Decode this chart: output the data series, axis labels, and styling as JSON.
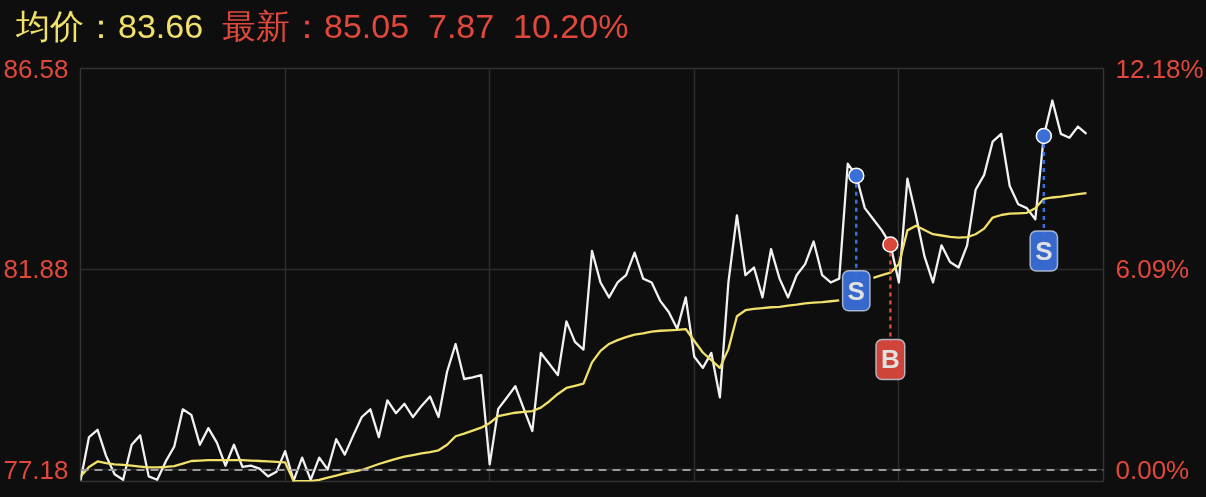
{
  "chart_data": {
    "type": "line",
    "title": "均价：83.66",
    "subtitle": "最新：85.05  7.87  10.20%",
    "categories": [
      null,
      null,
      null,
      null,
      null,
      null,
      null,
      null,
      null,
      null,
      null,
      null,
      null,
      null,
      null,
      null,
      null,
      null,
      null,
      null,
      null,
      null,
      null,
      null,
      null,
      null,
      null,
      null,
      null,
      null,
      null,
      null,
      null,
      null,
      null,
      null,
      null,
      null,
      null,
      null,
      null,
      null,
      null,
      null,
      null,
      null,
      null,
      null,
      null,
      null,
      null,
      null,
      null,
      null,
      null,
      null,
      null,
      null,
      null,
      null,
      null,
      null,
      null,
      null,
      null,
      null,
      null,
      null,
      null,
      null,
      null,
      null,
      null,
      null,
      null,
      null,
      null,
      null,
      null,
      null,
      null,
      null,
      null,
      null,
      null,
      null,
      null,
      null,
      null,
      null,
      null,
      null,
      null,
      null,
      null,
      null,
      null,
      null,
      null,
      null,
      null,
      null,
      null,
      null,
      null,
      null,
      null,
      null,
      null,
      null,
      null,
      null,
      null,
      null,
      null,
      null,
      null,
      null,
      null,
      null,
      null
    ],
    "ylim": [
      76.91,
      86.58
    ],
    "yticks": [
      86.58,
      81.88,
      77.18
    ],
    "y2lim": [
      -0.35,
      12.18
    ],
    "y2ticks": [
      {
        "value": 12.18,
        "label": "12.18%"
      },
      {
        "value": 6.09,
        "label": "6.09%"
      },
      {
        "value": 0,
        "label": "0.00%"
      }
    ],
    "grid": true,
    "ref_lines": [
      {
        "axis": "y",
        "value": 77.18,
        "color": "#9a9a9a",
        "line_style": "dashed"
      }
    ],
    "series": [
      {
        "color": "#f2f2f2",
        "values": [
          76.93,
          77.95,
          78.12,
          77.51,
          77.08,
          76.95,
          77.77,
          77.99,
          77.03,
          76.95,
          77.38,
          77.73,
          78.6,
          78.47,
          77.77,
          78.16,
          77.82,
          77.28,
          77.77,
          77.25,
          77.28,
          77.21,
          77.03,
          77.14,
          77.62,
          76.93,
          77.47,
          76.95,
          77.47,
          77.19,
          77.9,
          77.54,
          77.99,
          78.42,
          78.6,
          77.95,
          78.81,
          78.51,
          78.73,
          78.42,
          78.68,
          78.9,
          78.42,
          79.48,
          80.13,
          79.31,
          79.35,
          79.4,
          77.31,
          78.61,
          78.87,
          79.14,
          78.61,
          78.09,
          79.92,
          79.66,
          79.4,
          80.66,
          80.18,
          80.0,
          82.31,
          81.57,
          81.22,
          81.57,
          81.74,
          82.27,
          81.66,
          81.57,
          81.14,
          80.88,
          80.48,
          81.22,
          79.83,
          79.57,
          79.92,
          78.88,
          81.57,
          83.14,
          81.74,
          81.92,
          81.22,
          82.35,
          81.66,
          81.22,
          81.74,
          82.0,
          82.53,
          81.74,
          81.57,
          81.66,
          84.35,
          84.07,
          83.31,
          83.05,
          82.79,
          82.46,
          81.57,
          84.0,
          83.14,
          82.18,
          81.57,
          82.44,
          82.05,
          81.92,
          82.44,
          83.74,
          84.09,
          84.87,
          85.05,
          83.83,
          83.4,
          83.31,
          83.05,
          85.0,
          85.83,
          85.05,
          84.96,
          85.22,
          85.05,
          null,
          null
        ]
      },
      {
        "color": "#f1e16a",
        "values": [
          77.03,
          77.25,
          77.38,
          77.34,
          77.31,
          77.3,
          77.28,
          77.26,
          77.24,
          77.24,
          77.25,
          77.27,
          77.33,
          77.39,
          77.4,
          77.41,
          77.41,
          77.41,
          77.41,
          77.41,
          77.4,
          77.39,
          77.38,
          77.37,
          77.36,
          76.92,
          76.92,
          76.92,
          76.95,
          77.0,
          77.05,
          77.1,
          77.14,
          77.18,
          77.25,
          77.32,
          77.38,
          77.44,
          77.49,
          77.53,
          77.57,
          77.6,
          77.64,
          77.77,
          77.97,
          78.03,
          78.1,
          78.17,
          78.28,
          78.44,
          78.48,
          78.52,
          78.54,
          78.56,
          78.64,
          78.79,
          78.96,
          79.1,
          79.15,
          79.2,
          79.7,
          79.97,
          80.13,
          80.22,
          80.29,
          80.35,
          80.38,
          80.42,
          80.44,
          80.45,
          80.46,
          80.48,
          80.2,
          79.93,
          79.75,
          79.57,
          80.01,
          80.78,
          80.92,
          80.95,
          80.97,
          80.99,
          81.0,
          81.03,
          81.05,
          81.08,
          81.1,
          81.11,
          81.13,
          81.15,
          null,
          null,
          null,
          81.68,
          81.74,
          81.8,
          82.0,
          82.79,
          82.9,
          82.8,
          82.7,
          82.67,
          82.64,
          82.62,
          82.63,
          82.7,
          82.83,
          83.09,
          83.15,
          83.18,
          83.19,
          83.2,
          83.31,
          83.53,
          83.56,
          83.58,
          83.61,
          83.64,
          83.66,
          null,
          null
        ]
      },
      {
        "type": "scatter",
        "marker": "circle",
        "values": [
          null,
          null,
          null,
          null,
          null,
          null,
          null,
          null,
          null,
          null,
          null,
          null,
          null,
          null,
          null,
          null,
          null,
          null,
          null,
          null,
          null,
          null,
          null,
          null,
          null,
          null,
          null,
          null,
          null,
          null,
          null,
          null,
          null,
          null,
          null,
          null,
          null,
          null,
          null,
          null,
          null,
          null,
          null,
          null,
          null,
          null,
          null,
          null,
          null,
          null,
          null,
          null,
          null,
          null,
          null,
          null,
          null,
          null,
          null,
          null,
          null,
          null,
          null,
          null,
          null,
          null,
          null,
          null,
          null,
          null,
          null,
          null,
          null,
          null,
          null,
          null,
          null,
          null,
          null,
          null,
          null,
          null,
          null,
          null,
          null,
          null,
          null,
          null,
          null,
          null,
          null,
          84.07,
          null,
          null,
          null,
          82.46,
          null,
          null,
          null,
          null,
          null,
          null,
          null,
          null,
          null,
          null,
          null,
          null,
          null,
          null,
          null,
          null,
          null,
          85.0,
          null,
          null,
          null,
          null,
          null,
          null,
          null
        ],
        "colors": [
          null,
          null,
          null,
          null,
          null,
          null,
          null,
          null,
          null,
          null,
          null,
          null,
          null,
          null,
          null,
          null,
          null,
          null,
          null,
          null,
          null,
          null,
          null,
          null,
          null,
          null,
          null,
          null,
          null,
          null,
          null,
          null,
          null,
          null,
          null,
          null,
          null,
          null,
          null,
          null,
          null,
          null,
          null,
          null,
          null,
          null,
          null,
          null,
          null,
          null,
          null,
          null,
          null,
          null,
          null,
          null,
          null,
          null,
          null,
          null,
          null,
          null,
          null,
          null,
          null,
          null,
          null,
          null,
          null,
          null,
          null,
          null,
          null,
          null,
          null,
          null,
          null,
          null,
          null,
          null,
          null,
          null,
          null,
          null,
          null,
          null,
          null,
          null,
          null,
          null,
          null,
          "#3a6fd8",
          null,
          null,
          null,
          "#d9483b",
          null,
          null,
          null,
          null,
          null,
          null,
          null,
          null,
          null,
          null,
          null,
          null,
          null,
          null,
          null,
          null,
          null,
          "#3a6fd8",
          null,
          null,
          null,
          null,
          null,
          null,
          null
        ]
      }
    ],
    "annotations": [
      "S",
      "B",
      "S"
    ]
  }
}
